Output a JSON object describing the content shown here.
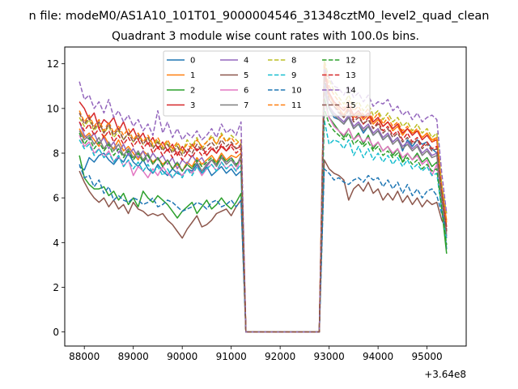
{
  "figure": {
    "suptitle": "n file: modeM0/AS1A10_101T01_9000004546_31348cztM0_level2_quad_clean",
    "x_offset_label": "+3.64e8"
  },
  "chart_data": {
    "type": "line",
    "title": "Quadrant 3 module wise count rates with 100.0s bins.",
    "xlabel": "",
    "ylabel": "",
    "xlim": [
      87600,
      95800
    ],
    "ylim": [
      -0.63,
      12.75
    ],
    "x_ticks": [
      88000,
      89000,
      90000,
      91000,
      92000,
      93000,
      94000,
      95000
    ],
    "x_tick_labels": [
      "88000",
      "89000",
      "90000",
      "91000",
      "92000",
      "93000",
      "94000",
      "95000"
    ],
    "y_ticks": [
      0,
      2,
      4,
      6,
      8,
      10,
      12
    ],
    "y_tick_labels": [
      "0",
      "2",
      "4",
      "6",
      "8",
      "10",
      "12"
    ],
    "grid": false,
    "legend_position": "top-center",
    "legend_columns": 4,
    "time_grid": {
      "start": 87900,
      "step": 100,
      "count": 76
    },
    "series": [
      {
        "name": "0",
        "color": "#1f77b4",
        "dash": "solid",
        "pre": [
          7.4,
          7.25,
          7.8,
          7.6,
          7.9,
          8.0,
          7.7,
          7.5,
          7.8,
          7.6,
          8.0,
          7.6,
          7.4,
          7.7,
          7.3,
          7.1,
          7.5,
          7.2,
          7.0,
          7.3,
          7.1,
          7.0,
          7.3,
          7.2,
          7.5,
          7.1,
          7.4,
          7.0,
          7.2,
          7.4,
          7.1,
          7.3,
          7.0,
          7.2
        ],
        "post": [
          11.2,
          10.0,
          9.6,
          9.5,
          9.3,
          9.6,
          9.1,
          9.3,
          8.9,
          9.2,
          8.8,
          9.0,
          8.6,
          8.8,
          8.5,
          8.7,
          8.1,
          8.6,
          8.3,
          8.6,
          8.4,
          8.5,
          8.2,
          8.0,
          6.0,
          3.7
        ]
      },
      {
        "name": "1",
        "color": "#ff7f0e",
        "dash": "solid",
        "pre": [
          9.1,
          8.7,
          8.9,
          8.6,
          8.3,
          8.8,
          8.4,
          8.2,
          8.6,
          8.1,
          8.3,
          8.0,
          7.7,
          8.1,
          7.9,
          7.6,
          7.8,
          7.5,
          7.7,
          7.3,
          7.5,
          7.2,
          7.6,
          7.4,
          7.8,
          7.5,
          7.7,
          7.9,
          7.6,
          8.0,
          7.7,
          7.9,
          7.8,
          8.0
        ],
        "post": [
          11.9,
          10.6,
          10.2,
          10.0,
          9.7,
          10.1,
          9.6,
          9.8,
          9.5,
          9.7,
          9.3,
          9.5,
          9.2,
          9.4,
          9.0,
          9.2,
          8.8,
          9.1,
          8.9,
          9.0,
          8.7,
          8.9,
          8.6,
          8.7,
          6.3,
          5.0
        ]
      },
      {
        "name": "2",
        "color": "#2ca02c",
        "dash": "solid",
        "pre": [
          7.9,
          6.9,
          6.6,
          6.4,
          6.4,
          6.5,
          6.1,
          6.3,
          5.9,
          6.2,
          5.7,
          6.0,
          5.6,
          6.3,
          6.0,
          5.8,
          6.1,
          5.9,
          5.7,
          5.4,
          5.1,
          5.4,
          5.6,
          5.8,
          5.3,
          5.6,
          5.9,
          5.5,
          5.7,
          6.0,
          5.7,
          5.5,
          5.8,
          6.2
        ],
        "post": [
          10.5,
          9.6,
          9.3,
          9.0,
          8.7,
          9.1,
          8.6,
          8.9,
          8.4,
          8.8,
          8.2,
          8.5,
          8.1,
          8.3,
          7.9,
          8.2,
          7.6,
          8.0,
          7.7,
          8.0,
          7.6,
          7.8,
          7.4,
          7.6,
          5.5,
          3.5
        ]
      },
      {
        "name": "3",
        "color": "#d62728",
        "dash": "solid",
        "pre": [
          10.3,
          10.0,
          9.5,
          9.8,
          9.1,
          9.5,
          9.3,
          9.6,
          9.0,
          9.4,
          8.8,
          9.1,
          8.6,
          8.9,
          8.4,
          8.7,
          8.2,
          8.5,
          8.1,
          8.4,
          7.9,
          8.3,
          8.0,
          8.4,
          8.1,
          8.3,
          7.9,
          8.2,
          8.0,
          8.3,
          8.1,
          8.4,
          8.2,
          8.3
        ],
        "post": [
          11.7,
          10.7,
          10.3,
          10.1,
          9.9,
          10.2,
          9.7,
          9.9,
          9.6,
          9.8,
          9.4,
          9.6,
          9.2,
          9.4,
          9.1,
          9.3,
          8.9,
          9.1,
          8.8,
          9.0,
          8.6,
          8.8,
          8.5,
          8.6,
          6.4,
          4.7
        ]
      },
      {
        "name": "4",
        "color": "#9467bd",
        "dash": "solid",
        "pre": [
          9.4,
          8.8,
          8.6,
          8.9,
          8.4,
          8.7,
          8.2,
          8.5,
          8.0,
          8.4,
          7.9,
          8.2,
          7.8,
          8.1,
          7.6,
          8.0,
          7.7,
          7.9,
          7.5,
          7.8,
          7.3,
          7.7,
          7.5,
          7.9,
          7.6,
          7.8,
          7.4,
          7.7,
          7.5,
          7.9,
          7.6,
          7.8,
          7.5,
          7.7
        ],
        "post": [
          11.0,
          10.1,
          9.8,
          9.6,
          9.4,
          9.7,
          9.2,
          9.4,
          9.1,
          9.3,
          8.9,
          9.1,
          8.7,
          8.9,
          8.5,
          8.7,
          8.3,
          8.5,
          8.2,
          8.4,
          8.0,
          8.2,
          7.9,
          8.0,
          6.0,
          4.2
        ]
      },
      {
        "name": "5",
        "color": "#8c564b",
        "dash": "solid",
        "pre": [
          7.2,
          6.7,
          6.3,
          6.0,
          5.8,
          6.0,
          5.6,
          5.9,
          5.5,
          5.7,
          5.3,
          5.8,
          5.5,
          5.4,
          5.2,
          5.3,
          5.2,
          5.3,
          5.0,
          4.8,
          4.5,
          4.2,
          4.6,
          4.9,
          5.2,
          4.7,
          4.8,
          5.0,
          5.3,
          5.4,
          5.5,
          5.2,
          5.6,
          5.9
        ],
        "post": [
          7.7,
          7.3,
          7.1,
          7.0,
          6.8,
          5.9,
          6.4,
          6.6,
          6.3,
          6.7,
          6.2,
          6.4,
          5.9,
          6.2,
          5.9,
          6.3,
          5.8,
          6.1,
          5.7,
          6.0,
          5.6,
          5.9,
          5.7,
          5.8,
          5.0,
          4.6
        ]
      },
      {
        "name": "6",
        "color": "#e377c2",
        "dash": "solid",
        "pre": [
          8.8,
          8.3,
          8.5,
          8.0,
          8.2,
          7.8,
          8.1,
          7.6,
          7.9,
          7.4,
          7.7,
          7.0,
          7.4,
          7.2,
          6.9,
          7.3,
          7.0,
          7.4,
          7.1,
          6.9,
          7.2,
          7.0,
          7.3,
          7.1,
          7.4,
          7.0,
          7.3,
          7.5,
          7.2,
          7.6,
          7.3,
          7.5,
          7.2,
          7.8
        ],
        "post": [
          10.3,
          9.6,
          9.2,
          9.0,
          8.8,
          9.1,
          8.6,
          8.8,
          8.5,
          8.7,
          8.3,
          8.5,
          8.1,
          8.3,
          8.0,
          8.2,
          7.8,
          8.0,
          7.7,
          7.9,
          7.5,
          7.7,
          7.0,
          7.5,
          5.7,
          4.4
        ]
      },
      {
        "name": "7",
        "color": "#7f7f7f",
        "dash": "solid",
        "pre": [
          9.0,
          8.6,
          8.8,
          8.4,
          8.7,
          8.2,
          8.5,
          8.1,
          8.4,
          7.9,
          8.2,
          7.8,
          8.1,
          7.7,
          8.0,
          7.5,
          7.8,
          7.4,
          7.7,
          7.3,
          7.6,
          7.2,
          7.5,
          7.3,
          7.6,
          7.2,
          7.5,
          7.7,
          7.4,
          7.8,
          7.5,
          7.7,
          7.4,
          7.9
        ],
        "post": [
          10.8,
          10.0,
          9.7,
          9.5,
          9.3,
          9.6,
          9.1,
          9.3,
          9.0,
          9.2,
          8.8,
          9.0,
          8.6,
          8.8,
          8.4,
          8.6,
          8.2,
          8.4,
          8.1,
          8.3,
          7.9,
          8.1,
          7.8,
          7.9,
          5.9,
          4.3
        ]
      },
      {
        "name": "8",
        "color": "#bcbd22",
        "dash": "dashed",
        "pre": [
          9.6,
          9.2,
          9.5,
          9.0,
          9.3,
          8.9,
          9.2,
          8.7,
          9.0,
          8.6,
          8.9,
          8.5,
          8.8,
          8.4,
          8.7,
          8.3,
          8.6,
          8.2,
          8.5,
          8.1,
          8.4,
          8.0,
          8.6,
          8.3,
          8.7,
          8.2,
          8.5,
          8.8,
          8.4,
          8.9,
          8.5,
          8.8,
          8.6,
          8.4
        ],
        "post": [
          12.2,
          11.3,
          10.8,
          10.5,
          10.2,
          10.6,
          10.1,
          10.3,
          9.9,
          10.2,
          9.7,
          9.9,
          9.5,
          9.8,
          9.4,
          9.6,
          9.2,
          9.4,
          9.0,
          9.3,
          8.9,
          9.1,
          8.7,
          8.9,
          6.6,
          5.3
        ]
      },
      {
        "name": "9",
        "color": "#17becf",
        "dash": "dashed",
        "pre": [
          8.6,
          8.2,
          8.4,
          7.9,
          8.2,
          7.8,
          8.0,
          7.6,
          7.9,
          7.4,
          7.7,
          7.3,
          7.6,
          7.2,
          7.5,
          7.1,
          7.4,
          7.0,
          7.3,
          6.9,
          7.2,
          6.9,
          7.3,
          7.0,
          7.4,
          7.1,
          7.3,
          7.5,
          7.2,
          7.6,
          7.3,
          7.5,
          7.2,
          7.5
        ],
        "post": [
          9.5,
          8.4,
          8.6,
          8.5,
          8.2,
          8.6,
          7.9,
          8.3,
          7.8,
          8.2,
          7.7,
          8.0,
          7.6,
          7.9,
          7.5,
          7.8,
          7.4,
          7.7,
          7.3,
          7.5,
          7.2,
          7.4,
          7.0,
          7.1,
          5.4,
          4.1
        ]
      },
      {
        "name": "10",
        "color": "#1f77b4",
        "dash": "dashed",
        "pre": [
          7.5,
          6.9,
          7.0,
          6.5,
          6.8,
          6.2,
          6.5,
          5.9,
          6.1,
          5.9,
          5.8,
          6.0,
          5.9,
          5.7,
          5.8,
          6.0,
          5.6,
          5.7,
          5.9,
          5.8,
          5.6,
          5.4,
          5.5,
          5.6,
          5.8,
          5.7,
          5.5,
          5.8,
          5.9,
          5.6,
          5.7,
          5.9,
          5.6,
          5.9
        ],
        "post": [
          7.3,
          7.1,
          6.8,
          6.9,
          6.7,
          6.6,
          6.8,
          6.9,
          6.7,
          7.0,
          6.8,
          6.9,
          6.5,
          6.8,
          6.4,
          6.7,
          6.2,
          6.6,
          6.1,
          6.4,
          6.0,
          6.3,
          6.4,
          6.1,
          5.3,
          4.6
        ]
      },
      {
        "name": "11",
        "color": "#ff7f0e",
        "dash": "dashed",
        "pre": [
          9.9,
          9.4,
          9.7,
          9.2,
          9.5,
          9.0,
          9.4,
          8.9,
          9.2,
          8.8,
          9.1,
          8.6,
          8.9,
          8.5,
          8.8,
          8.4,
          8.7,
          8.3,
          8.6,
          8.2,
          8.5,
          8.1,
          8.4,
          8.2,
          8.6,
          8.3,
          8.5,
          8.7,
          8.4,
          8.8,
          8.5,
          8.7,
          8.4,
          8.6
        ],
        "post": [
          12.0,
          11.0,
          10.6,
          10.3,
          10.0,
          10.4,
          9.9,
          10.1,
          9.7,
          10.0,
          9.5,
          9.8,
          9.3,
          9.6,
          9.2,
          9.4,
          9.0,
          9.2,
          8.9,
          9.1,
          8.7,
          8.9,
          8.5,
          8.7,
          6.5,
          4.9
        ]
      },
      {
        "name": "12",
        "color": "#2ca02c",
        "dash": "dashed",
        "pre": [
          8.9,
          8.4,
          8.7,
          8.2,
          8.5,
          8.1,
          8.4,
          7.9,
          8.2,
          7.8,
          8.1,
          7.7,
          8.0,
          7.6,
          7.9,
          7.5,
          7.8,
          7.4,
          7.7,
          7.3,
          7.6,
          7.2,
          7.5,
          7.3,
          7.7,
          7.4,
          7.6,
          7.8,
          7.5,
          7.9,
          7.6,
          7.8,
          7.5,
          7.7
        ],
        "post": [
          10.0,
          9.3,
          9.0,
          8.8,
          8.6,
          8.9,
          8.4,
          8.6,
          8.3,
          8.5,
          8.1,
          8.3,
          7.9,
          8.1,
          7.8,
          8.0,
          7.6,
          7.8,
          7.5,
          7.7,
          7.3,
          7.5,
          7.2,
          7.3,
          5.5,
          3.9
        ]
      },
      {
        "name": "13",
        "color": "#d62728",
        "dash": "dashed",
        "pre": [
          9.4,
          9.0,
          9.3,
          8.8,
          9.1,
          8.7,
          9.0,
          8.5,
          8.8,
          8.4,
          8.7,
          8.3,
          8.6,
          8.2,
          8.5,
          8.0,
          8.3,
          7.9,
          8.2,
          7.8,
          8.1,
          7.7,
          8.0,
          7.8,
          8.2,
          7.9,
          8.1,
          8.3,
          8.0,
          8.4,
          8.1,
          8.3,
          8.0,
          8.2
        ],
        "post": [
          11.5,
          10.4,
          10.1,
          9.9,
          9.6,
          10.0,
          9.5,
          9.7,
          9.3,
          9.6,
          9.1,
          9.4,
          9.0,
          9.2,
          8.8,
          9.0,
          8.6,
          8.9,
          8.5,
          8.7,
          8.3,
          8.5,
          8.2,
          8.3,
          6.2,
          4.5
        ]
      },
      {
        "name": "14",
        "color": "#9467bd",
        "dash": "dashed",
        "pre": [
          11.2,
          10.4,
          10.6,
          10.0,
          10.3,
          9.8,
          10.4,
          9.6,
          9.9,
          9.4,
          9.7,
          9.2,
          9.5,
          9.0,
          9.3,
          8.8,
          9.9,
          8.9,
          9.4,
          8.7,
          9.1,
          8.6,
          8.9,
          8.7,
          9.0,
          8.6,
          8.8,
          9.1,
          8.7,
          9.3,
          8.9,
          9.1,
          8.8,
          9.4
        ],
        "post": [
          11.8,
          11.4,
          11.0,
          10.9,
          10.6,
          11.0,
          10.5,
          10.7,
          10.3,
          10.6,
          10.1,
          10.3,
          10.2,
          10.4,
          9.9,
          10.1,
          9.7,
          9.9,
          9.5,
          9.8,
          9.4,
          9.6,
          9.7,
          9.5,
          7.1,
          5.3
        ]
      },
      {
        "name": "15",
        "color": "#8c564b",
        "dash": "dashed",
        "pre": [
          9.8,
          9.3,
          9.6,
          9.1,
          9.4,
          8.9,
          9.3,
          8.8,
          9.1,
          8.6,
          8.9,
          8.5,
          8.8,
          8.4,
          8.7,
          8.2,
          8.5,
          8.1,
          8.4,
          8.0,
          8.3,
          7.9,
          8.2,
          8.0,
          8.4,
          8.1,
          8.3,
          8.5,
          8.2,
          8.6,
          8.3,
          8.5,
          8.2,
          8.4
        ],
        "post": [
          11.4,
          10.4,
          10.1,
          9.8,
          9.6,
          9.9,
          9.4,
          9.6,
          9.3,
          9.5,
          9.1,
          9.3,
          8.9,
          9.1,
          8.7,
          8.9,
          8.5,
          8.7,
          8.4,
          8.6,
          8.2,
          8.4,
          8.1,
          8.2,
          6.2,
          4.5
        ]
      }
    ]
  }
}
